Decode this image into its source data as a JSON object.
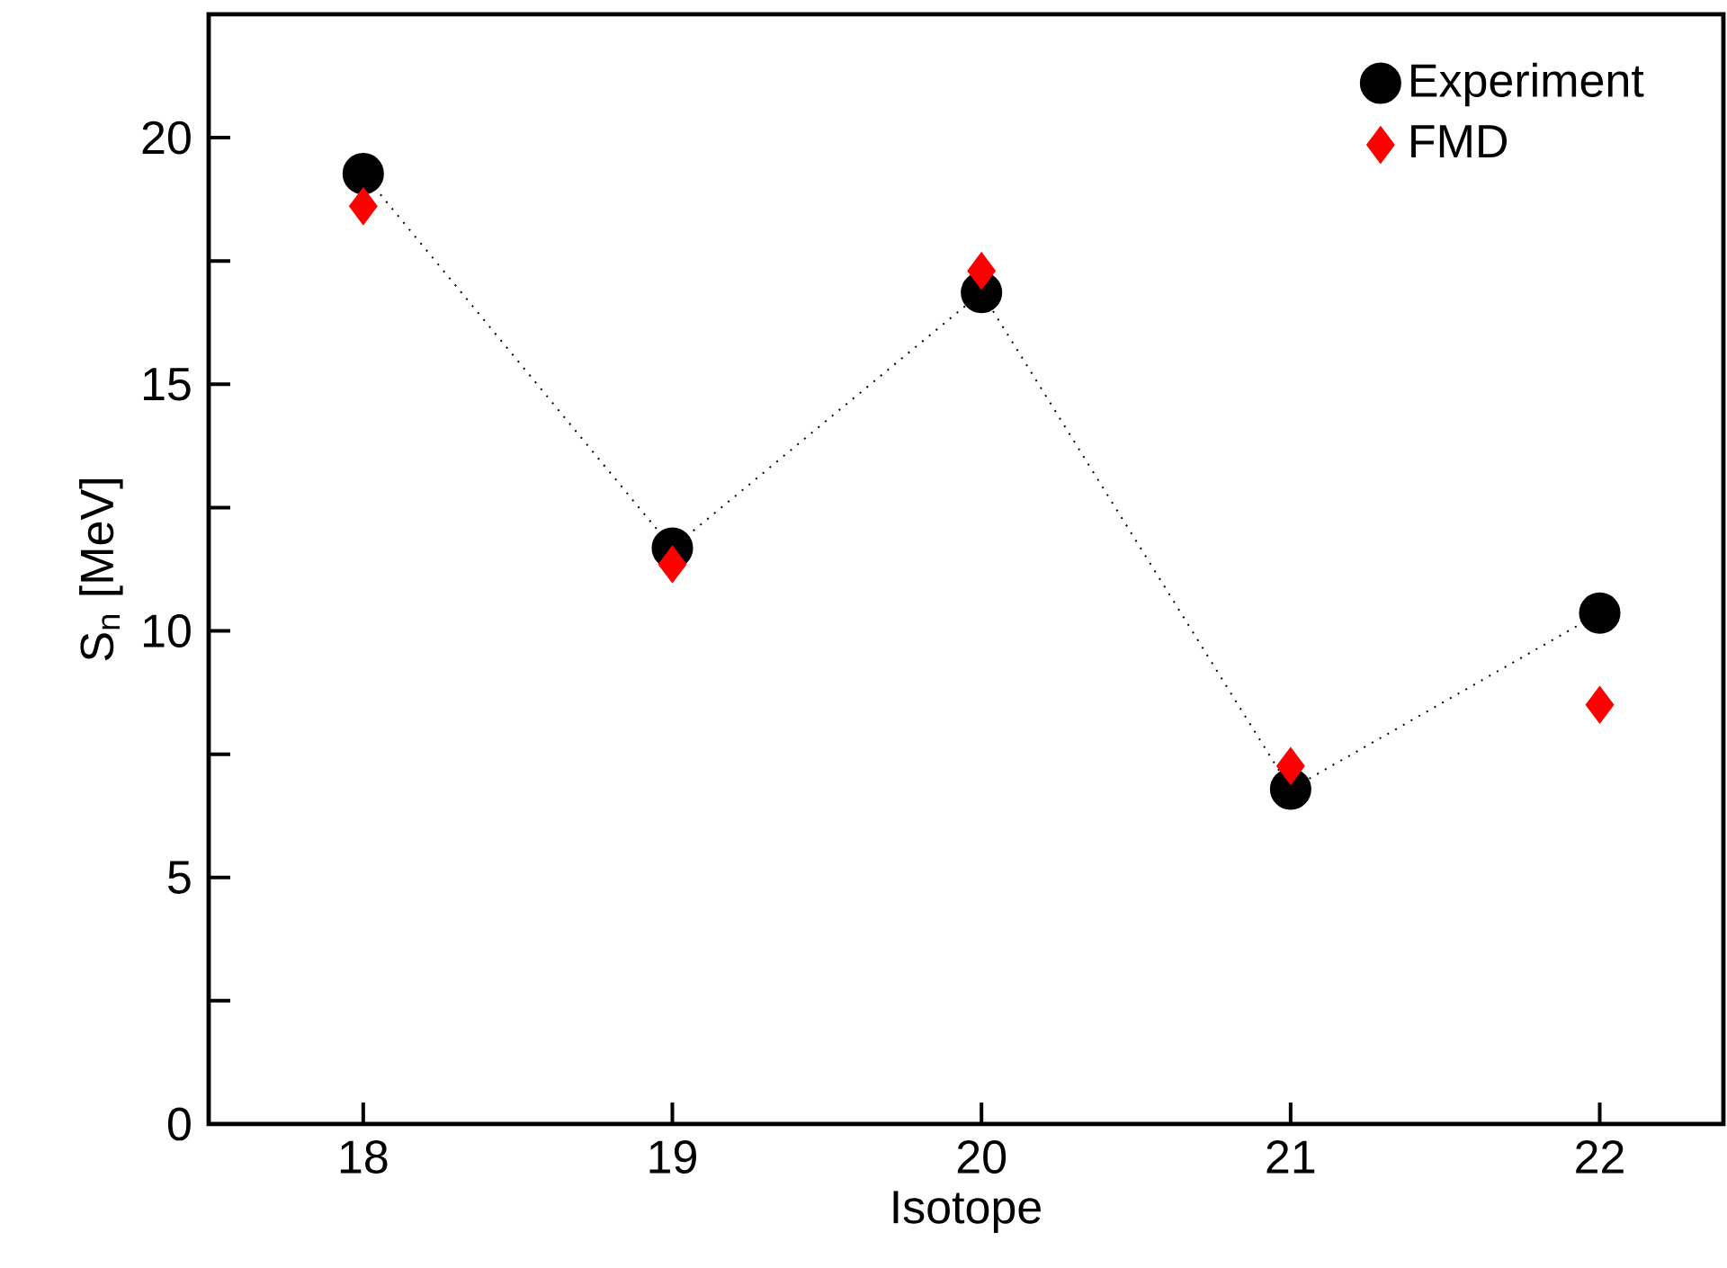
{
  "chart_data": {
    "type": "scatter",
    "xlabel": "Isotope",
    "ylabel": "S$_{n}$ [MeV]",
    "xlim": [
      17.5,
      22.4
    ],
    "ylim": [
      0,
      22.5
    ],
    "xticks": [
      18,
      19,
      20,
      21,
      22
    ],
    "yticks": [
      0,
      {
        "value": 2.5,
        "label": null
      },
      5,
      {
        "value": 7.5,
        "label": null
      },
      10,
      {
        "value": 12.5,
        "label": null
      },
      15,
      {
        "value": 17.5,
        "label": null
      },
      20
    ],
    "x": [
      18,
      19,
      20,
      21,
      22
    ],
    "legend": "top right",
    "grid": false,
    "series": [
      {
        "name": "Experiment",
        "type": "line",
        "color": "#000000",
        "marker": "circle",
        "line_style": "dotted",
        "values": [
          19.27,
          11.68,
          16.86,
          6.79,
          10.36
        ]
      },
      {
        "name": "FMD",
        "color": "#ff0000",
        "marker": "diamond",
        "values": [
          18.61,
          11.35,
          17.3,
          7.26,
          8.5
        ]
      }
    ]
  }
}
